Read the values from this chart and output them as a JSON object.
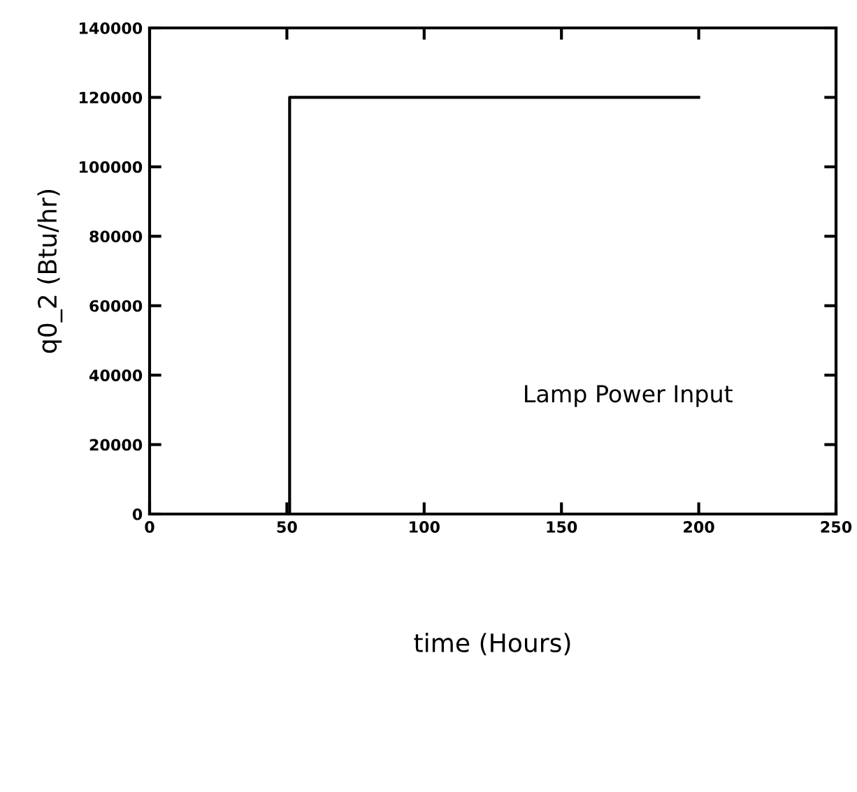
{
  "chart_data": {
    "type": "step",
    "xlabel": "time (Hours)",
    "ylabel": "q0_2 (Btu/hr)",
    "series": [
      {
        "x": [
          51,
          200
        ],
        "values": [
          0,
          120000
        ],
        "color": "#000000"
      }
    ],
    "xlim": [
      0,
      250
    ],
    "xticks": [
      0,
      50,
      100,
      150,
      200,
      250
    ],
    "ylim": [
      0,
      140000
    ],
    "yticks": [
      0,
      20000,
      40000,
      60000,
      80000,
      100000,
      120000,
      140000
    ],
    "annotations": [
      "Lamp Power Input"
    ],
    "grid": false,
    "legend": false,
    "marker": "none",
    "line_style": "solid"
  }
}
